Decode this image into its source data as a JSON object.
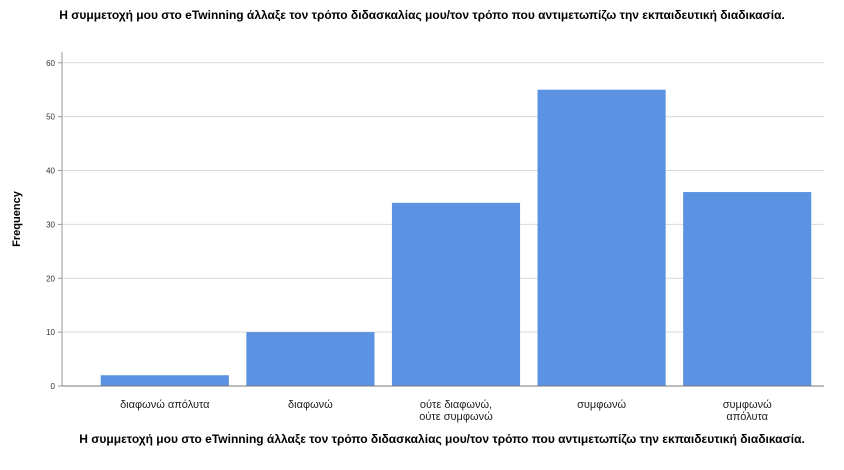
{
  "chart_data": {
    "type": "bar",
    "title": "Η συμμετοχή μου στο eTwinning άλλαξε τον τρόπο διδασκαλίας μου/τον τρόπο που αντιμετωπίζω την εκπαιδευτική διαδικασία.",
    "xlabel": "Η συμμετοχή μου στο eTwinning άλλαξε τον τρόπο διδασκαλίας μου/τον τρόπο που αντιμετωπίζω την εκπαιδευτική διαδικασία.",
    "ylabel": "Frequency",
    "categories": [
      [
        "διαφωνώ απόλυτα"
      ],
      [
        "διαφωνώ"
      ],
      [
        "ούτε διαφωνώ,",
        "ούτε συμφωνώ"
      ],
      [
        "συμφωνώ"
      ],
      [
        "συμφωνώ",
        "απόλυτα"
      ]
    ],
    "values": [
      2,
      10,
      34,
      55,
      36
    ],
    "ylim": [
      0,
      62
    ],
    "yticks": [
      0,
      10,
      20,
      30,
      40,
      50,
      60
    ],
    "grid": true,
    "bar_color": "#5b93e2"
  }
}
